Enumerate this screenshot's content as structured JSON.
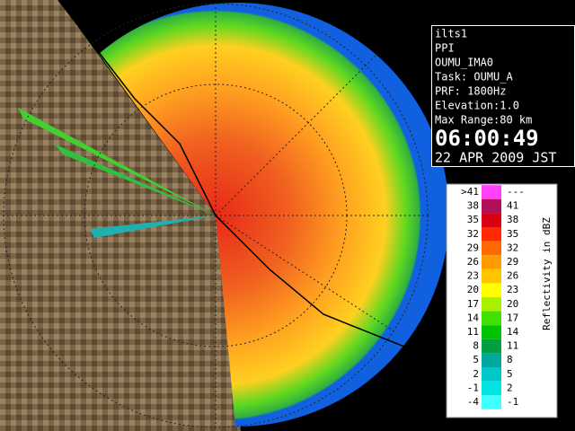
{
  "info": {
    "lines": [
      "ilts1",
      "PPI",
      "OUMU_IMA0",
      "Task: OUMU_A",
      "PRF: 1800Hz",
      "Elevation:1.0",
      "Max Range:80 km"
    ],
    "time": "06:00:49",
    "date": "22 APR 2009 JST"
  },
  "legend": {
    "title": "Reflectivity in dBZ",
    "rows": [
      {
        "low": ">41",
        "high": "---",
        "color": "#ff40ff"
      },
      {
        "low": "38",
        "high": "41",
        "color": "#b0105a"
      },
      {
        "low": "35",
        "high": "38",
        "color": "#d80010"
      },
      {
        "low": "32",
        "high": "35",
        "color": "#ff2a00"
      },
      {
        "low": "29",
        "high": "32",
        "color": "#ff6a00"
      },
      {
        "low": "26",
        "high": "29",
        "color": "#ff9a00"
      },
      {
        "low": "23",
        "high": "26",
        "color": "#ffc400"
      },
      {
        "low": "20",
        "high": "23",
        "color": "#ffff00"
      },
      {
        "low": "17",
        "high": "20",
        "color": "#a8f000"
      },
      {
        "low": "14",
        "high": "17",
        "color": "#40e000"
      },
      {
        "low": "11",
        "high": "14",
        "color": "#00c400"
      },
      {
        "low": "8",
        "high": "11",
        "color": "#00a040"
      },
      {
        "low": "5",
        "high": "8",
        "color": "#00a8a0"
      },
      {
        "low": "2",
        "high": "5",
        "color": "#00c8c8"
      },
      {
        "low": "-1",
        "high": "2",
        "color": "#00e4e4"
      },
      {
        "low": "-4",
        "high": "-1",
        "color": "#40ffff"
      }
    ]
  }
}
